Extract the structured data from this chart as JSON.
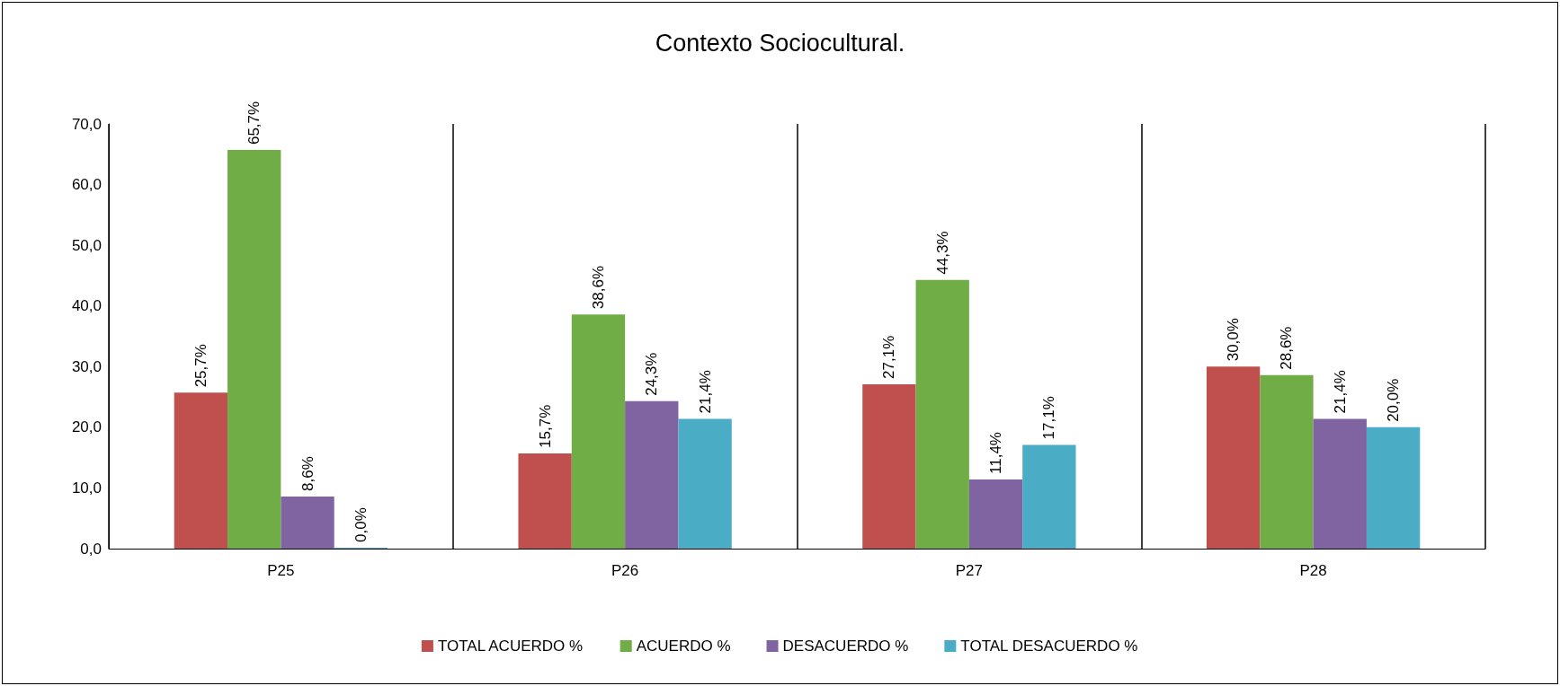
{
  "chart_data": {
    "type": "bar",
    "title": "Contexto Sociocultural.",
    "categories": [
      "P25",
      "P26",
      "P27",
      "P28"
    ],
    "series": [
      {
        "name": "TOTAL ACUERDO %",
        "color": "#c0504d",
        "values": [
          25.7,
          15.7,
          27.1,
          30.0
        ],
        "value_labels": [
          "25,7%",
          "15,7%",
          "27,1%",
          "30,0%"
        ]
      },
      {
        "name": "ACUERDO %",
        "color": "#70ad47",
        "values": [
          65.7,
          38.6,
          44.3,
          28.6
        ],
        "value_labels": [
          "65,7%",
          "38,6%",
          "44,3%",
          "28,6%"
        ]
      },
      {
        "name": "DESACUERDO %",
        "color": "#8064a2",
        "values": [
          8.6,
          24.3,
          11.4,
          21.4
        ],
        "value_labels": [
          "8,6%",
          "24,3%",
          "11,4%",
          "21,4%"
        ]
      },
      {
        "name": "TOTAL DESACUERDO %",
        "color": "#4bacc6",
        "values": [
          0.0,
          21.4,
          17.1,
          20.0
        ],
        "value_labels": [
          "0,0%",
          "21,4%",
          "17,1%",
          "20,0%"
        ]
      }
    ],
    "ylim": [
      0,
      70
    ],
    "yticks": [
      {
        "value": 0,
        "label": "0,0"
      },
      {
        "value": 10,
        "label": "10,0"
      },
      {
        "value": 20,
        "label": "20,0"
      },
      {
        "value": 30,
        "label": "30,0"
      },
      {
        "value": 40,
        "label": "40,0"
      },
      {
        "value": 50,
        "label": "50,0"
      },
      {
        "value": 60,
        "label": "60,0"
      },
      {
        "value": 70,
        "label": "70,0"
      }
    ],
    "grid": "x",
    "legend": "bottom"
  }
}
